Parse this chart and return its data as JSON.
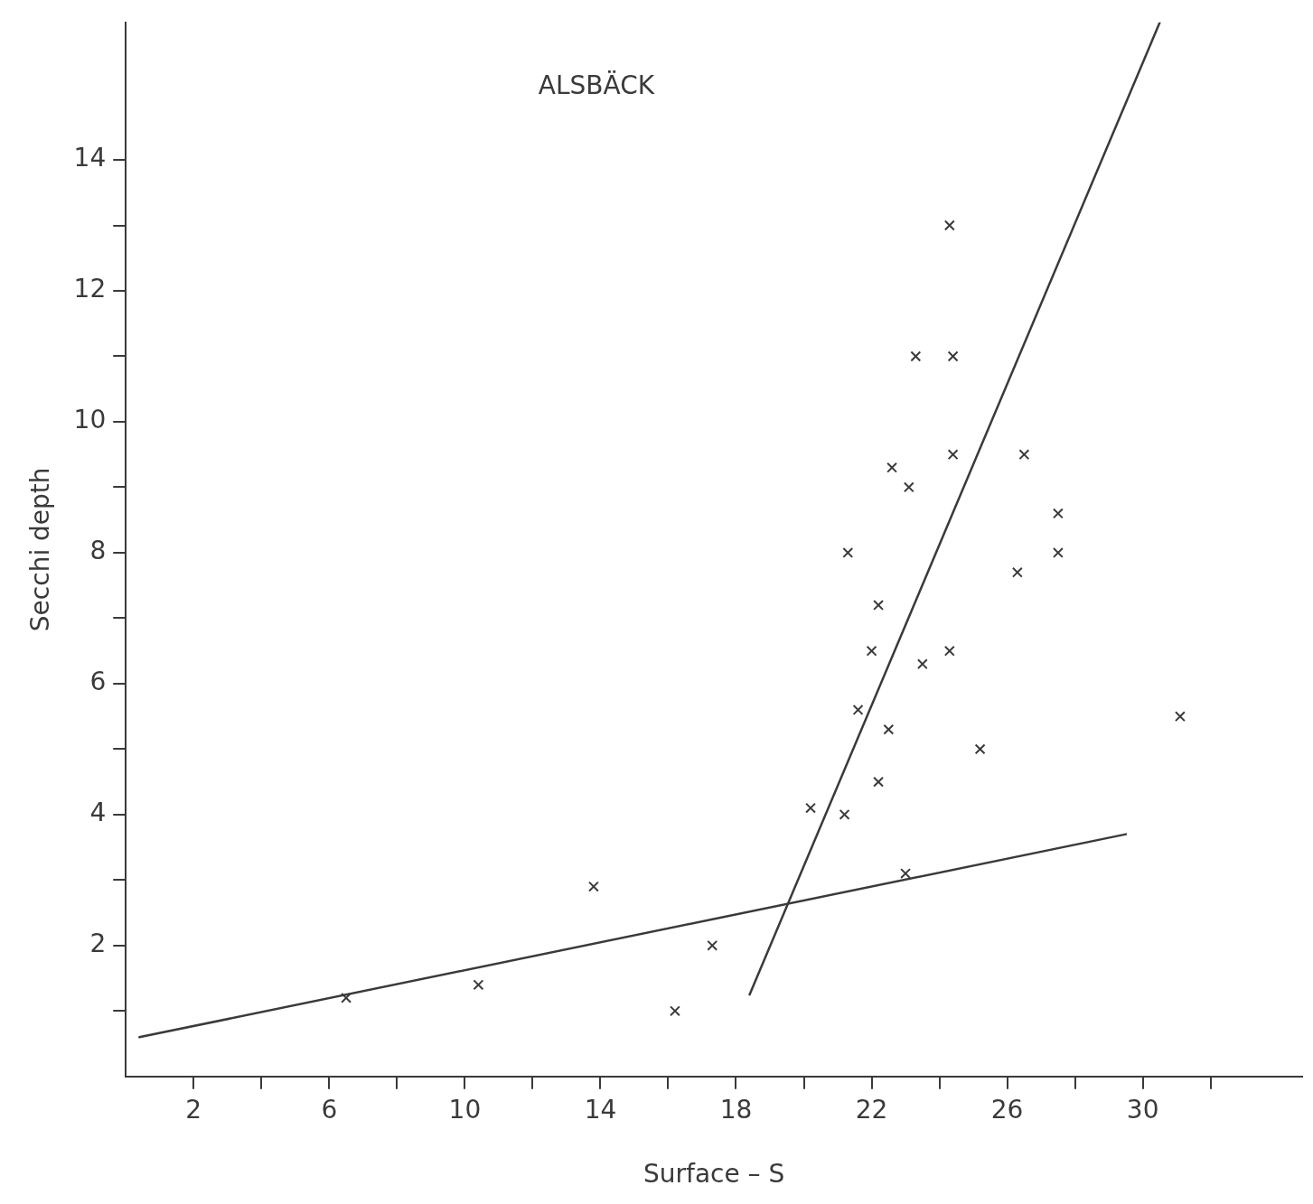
{
  "chart_data": {
    "type": "scatter",
    "title": "ALSBÄCK",
    "xlabel": "Surface – S",
    "ylabel": "Secchi depth",
    "xlim": [
      0,
      34.7
    ],
    "ylim": [
      0,
      16.1
    ],
    "xticks": [
      2,
      {
        "value": 4,
        "label": null
      },
      6,
      {
        "value": 8,
        "label": null
      },
      10,
      {
        "value": 12,
        "label": null
      },
      14,
      {
        "value": 16,
        "label": null
      },
      18,
      {
        "value": 20,
        "label": null
      },
      22,
      {
        "value": 24,
        "label": null
      },
      26,
      {
        "value": 28,
        "label": null
      },
      30,
      {
        "value": 32,
        "label": null
      }
    ],
    "yticks": [
      {
        "value": 1,
        "label": null
      },
      2,
      {
        "value": 3,
        "label": null
      },
      4,
      {
        "value": 5,
        "label": null
      },
      6,
      {
        "value": 7,
        "label": null
      },
      8,
      {
        "value": 9,
        "label": null
      },
      10,
      {
        "value": 11,
        "label": null
      },
      12,
      {
        "value": 13,
        "label": null
      },
      14
    ],
    "grid": false,
    "legend": false,
    "marker": "cross",
    "series": [
      {
        "color": "#3a3a3a",
        "x": [
          6.5,
          10.4,
          13.8,
          16.2,
          17.3,
          20.2,
          21.2,
          21.3,
          21.6,
          22.0,
          22.2,
          22.2,
          22.5,
          22.6,
          23.0,
          23.1,
          23.3,
          23.5,
          24.3,
          24.3,
          24.4,
          24.4,
          25.2,
          26.3,
          26.5,
          27.5,
          27.5,
          31.1
        ],
        "values": [
          1.2,
          1.4,
          2.9,
          1.0,
          2.0,
          4.1,
          4.0,
          8.0,
          5.6,
          6.5,
          7.2,
          4.5,
          5.3,
          9.3,
          3.1,
          9.0,
          11.0,
          6.3,
          6.5,
          13.0,
          11.0,
          9.5,
          5.0,
          7.7,
          9.5,
          8.6,
          8.0,
          5.5
        ]
      },
      {
        "type": "line",
        "color": "#3a3a3a",
        "x": [
          0.4,
          29.5
        ],
        "values": [
          0.6,
          3.7
        ],
        "marker": "none",
        "line_style": "solid"
      },
      {
        "type": "line",
        "color": "#3a3a3a",
        "x": [
          18.4,
          30.5
        ],
        "values": [
          1.25,
          16.1
        ],
        "marker": "none",
        "line_style": "solid"
      }
    ]
  }
}
